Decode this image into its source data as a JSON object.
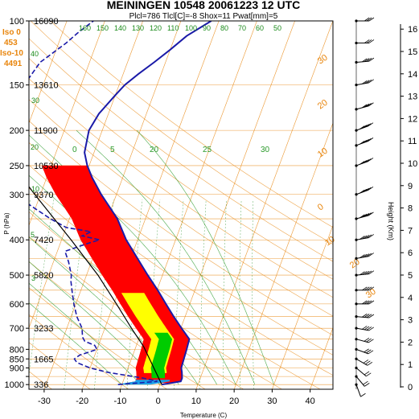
{
  "header": {
    "title": "MEININGEN 10548 20061223 12 UTC",
    "subtitle": "Plcl=786 Tlcl[C]=-8 Shox=11 Pwat[mm]=5"
  },
  "indices": {
    "iso0_label": "Iso 0",
    "iso0_value": "453",
    "iso10_label": "Iso-10",
    "iso10_value": "4491"
  },
  "colors": {
    "isotherm": "#e8850c",
    "isobar": "#e8850c",
    "dry_adiabat": "#e8850c",
    "moist_adiabat": "#2a9a2a",
    "mixing_ratio": "#1a8a1a",
    "temperature": "#1a1aa8",
    "dewpoint": "#1a1aa8",
    "parcel": "#000000",
    "cape_red": "#ff0000",
    "cape_yellow": "#ffff00",
    "cape_green": "#00cc00",
    "cape_blue": "#1a9fe8"
  },
  "chart_data": {
    "type": "line",
    "title": "MEININGEN 10548 20061223 12 UTC",
    "subtitle": "Plcl=786 Tlcl[C]=-8 Shox=11 Pwat[mm]=5",
    "xlabel": "Temperature (C)",
    "ylabel": "P (hPa)",
    "y2label": "Height (Km)",
    "x_ticks": [
      -30,
      -20,
      -10,
      0,
      10,
      20,
      30,
      40
    ],
    "x_range": [
      -34,
      46
    ],
    "y_scale": "log",
    "y_range": [
      1030,
      100
    ],
    "p_ticks": [
      1000,
      950,
      900,
      850,
      800,
      700,
      600,
      500,
      400,
      300,
      250,
      200,
      150,
      100
    ],
    "p_tick_labels": [
      "1000",
      "",
      "900",
      "850",
      "800",
      "700",
      "600",
      "500",
      "400",
      "300",
      "250",
      "200",
      "150",
      "100"
    ],
    "height_ticks": [
      0,
      1,
      2,
      3,
      4,
      5,
      6,
      7,
      8,
      9,
      10,
      11,
      12,
      13,
      14,
      15,
      16
    ],
    "height_labels": [
      {
        "p": 100,
        "m": "16090"
      },
      {
        "p": 150,
        "m": "13610"
      },
      {
        "p": 200,
        "m": "11900"
      },
      {
        "p": 250,
        "m": "10530"
      },
      {
        "p": 300,
        "m": "9370"
      },
      {
        "p": 400,
        "m": "7420"
      },
      {
        "p": 500,
        "m": "5820"
      },
      {
        "p": 700,
        "m": "3233"
      },
      {
        "p": 850,
        "m": "1665"
      },
      {
        "p": 1000,
        "m": "336"
      }
    ],
    "mixing_ratio_labels": [
      "50",
      "60",
      "70",
      "80",
      "90",
      "100",
      "110",
      "120",
      "130",
      "140",
      "150",
      "160",
      "40",
      "30",
      "20",
      "10",
      "5",
      "3"
    ],
    "moist_adiabat_labels": [
      "0",
      "5",
      "20",
      "25",
      "30"
    ],
    "dry_adiabat_labels": [
      "30",
      "20",
      "10",
      "0",
      "10",
      "20",
      "30"
    ],
    "dry_adiabat_theta": [
      -30,
      -20,
      -10,
      0,
      10,
      20,
      30,
      40,
      50,
      60,
      70,
      80,
      90,
      100,
      110,
      120,
      130
    ],
    "moist_adiabat_theta": [
      -10,
      -5,
      0,
      5,
      10,
      15,
      20,
      25,
      30
    ],
    "mixing_ratio_gkg": [
      0.1,
      0.2,
      0.5,
      1,
      2,
      3,
      5,
      8,
      12,
      16,
      20
    ],
    "series": [
      {
        "name": "T",
        "points": [
          [
            1000,
            0.5
          ],
          [
            980,
            5.2
          ],
          [
            960,
            5.2
          ],
          [
            925,
            4.6
          ],
          [
            900,
            4.0
          ],
          [
            850,
            3.8
          ],
          [
            800,
            3.6
          ],
          [
            750,
            3.3
          ],
          [
            700,
            0.2
          ],
          [
            650,
            -3.0
          ],
          [
            600,
            -6.3
          ],
          [
            550,
            -9.8
          ],
          [
            500,
            -13.9
          ],
          [
            450,
            -18.2
          ],
          [
            400,
            -23.0
          ],
          [
            350,
            -27.4
          ],
          [
            300,
            -34.0
          ],
          [
            270,
            -38.0
          ],
          [
            250,
            -40.5
          ],
          [
            230,
            -42.5
          ],
          [
            200,
            -43.5
          ],
          [
            180,
            -42.5
          ],
          [
            160,
            -40.0
          ],
          [
            150,
            -38.5
          ],
          [
            140,
            -36.0
          ],
          [
            130,
            -33.0
          ],
          [
            120,
            -30.0
          ],
          [
            110,
            -27.0
          ],
          [
            100,
            -22.0
          ]
        ]
      },
      {
        "name": "Td",
        "points": [
          [
            1000,
            -11.0
          ],
          [
            980,
            -1.0
          ],
          [
            960,
            -5.0
          ],
          [
            925,
            -15.0
          ],
          [
            900,
            -20.0
          ],
          [
            870,
            -24.0
          ],
          [
            850,
            -25.0
          ],
          [
            830,
            -24.0
          ],
          [
            800,
            -20.0
          ],
          [
            780,
            -21.0
          ],
          [
            760,
            -24.0
          ],
          [
            740,
            -25.0
          ],
          [
            700,
            -26.0
          ],
          [
            650,
            -28.5
          ],
          [
            600,
            -30.5
          ],
          [
            560,
            -32.0
          ],
          [
            520,
            -33.5
          ],
          [
            500,
            -34.0
          ],
          [
            460,
            -36.0
          ],
          [
            430,
            -38.0
          ],
          [
            410,
            -33.0
          ],
          [
            400,
            -30.0
          ],
          [
            390,
            -35.0
          ],
          [
            380,
            -33.0
          ],
          [
            370,
            -40.0
          ],
          [
            350,
            -45.0
          ],
          [
            320,
            -52.0
          ],
          [
            300,
            -56.0
          ],
          [
            280,
            -58.0
          ],
          [
            260,
            -60.0
          ],
          [
            250,
            -61.0
          ],
          [
            230,
            -62.0
          ],
          [
            210,
            -64.0
          ],
          [
            190,
            -65.0
          ],
          [
            170,
            -65.0
          ],
          [
            150,
            -65.0
          ],
          [
            130,
            -63.0
          ],
          [
            115,
            -58.0
          ],
          [
            108,
            -56.0
          ],
          [
            100,
            -53.0
          ]
        ]
      },
      {
        "name": "Parcel",
        "points": [
          [
            1000,
            0.5
          ],
          [
            786,
            -8.0
          ],
          [
            700,
            -13.0
          ],
          [
            600,
            -19.3
          ],
          [
            500,
            -27.0
          ],
          [
            400,
            -37.5
          ],
          [
            300,
            -51.5
          ],
          [
            250,
            -60.0
          ]
        ]
      }
    ],
    "wind_barbs": [
      {
        "p": 1000,
        "dir": 200,
        "spd": 10
      },
      {
        "p": 950,
        "dir": 220,
        "spd": 15
      },
      {
        "p": 900,
        "dir": 230,
        "spd": 20
      },
      {
        "p": 850,
        "dir": 240,
        "spd": 25
      },
      {
        "p": 800,
        "dir": 250,
        "spd": 30
      },
      {
        "p": 750,
        "dir": 255,
        "spd": 30
      },
      {
        "p": 700,
        "dir": 260,
        "spd": 35
      },
      {
        "p": 650,
        "dir": 265,
        "spd": 35
      },
      {
        "p": 600,
        "dir": 270,
        "spd": 40
      },
      {
        "p": 550,
        "dir": 270,
        "spd": 40
      },
      {
        "p": 500,
        "dir": 275,
        "spd": 45
      },
      {
        "p": 450,
        "dir": 280,
        "spd": 45
      },
      {
        "p": 400,
        "dir": 280,
        "spd": 50
      },
      {
        "p": 350,
        "dir": 285,
        "spd": 50
      },
      {
        "p": 300,
        "dir": 290,
        "spd": 55
      },
      {
        "p": 250,
        "dir": 290,
        "spd": 55
      },
      {
        "p": 220,
        "dir": 290,
        "spd": 50
      },
      {
        "p": 200,
        "dir": 290,
        "spd": 45
      },
      {
        "p": 175,
        "dir": 285,
        "spd": 40
      },
      {
        "p": 150,
        "dir": 280,
        "spd": 40
      },
      {
        "p": 130,
        "dir": 275,
        "spd": 35
      },
      {
        "p": 115,
        "dir": 270,
        "spd": 30
      },
      {
        "p": 100,
        "dir": 270,
        "spd": 30
      }
    ]
  }
}
